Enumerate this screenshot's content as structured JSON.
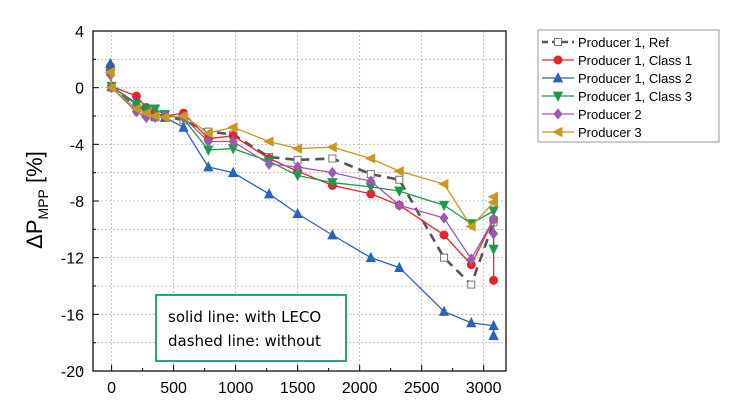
{
  "chart_data": {
    "type": "line",
    "ylabel": {
      "main": "ΔP",
      "sub": "MPP",
      "unit": " [%]"
    },
    "xlabel": "",
    "title": "",
    "xlim": [
      -150,
      3180
    ],
    "ylim": [
      -20,
      4
    ],
    "xticks": [
      0,
      500,
      1000,
      1500,
      2000,
      2500,
      3000
    ],
    "yticks": [
      4,
      0,
      -4,
      -8,
      -12,
      -16,
      -20
    ],
    "xtick_labels": [
      "0",
      "500",
      "1000",
      "1500",
      "2000",
      "2500",
      "3000"
    ],
    "ytick_labels": [
      "4",
      "0",
      "-4",
      "-8",
      "-12",
      "-16",
      "-20"
    ],
    "grid": true,
    "legend_position": "top-right",
    "series": [
      {
        "name": "Producer 1, Ref",
        "color": "#555555",
        "marker": "square-open",
        "dashed": true,
        "x": [
          -10,
          0,
          200,
          280,
          350,
          430,
          580,
          780,
          980,
          1270,
          1500,
          1780,
          2090,
          2320,
          2680,
          2900,
          3080
        ],
        "y": [
          1.2,
          0.0,
          -1.3,
          -1.8,
          -2.1,
          -2.0,
          -2.3,
          -3.1,
          -3.3,
          -4.9,
          -5.1,
          -5.0,
          -6.1,
          -6.5,
          -12.0,
          -13.9,
          -9.5
        ]
      },
      {
        "name": "Producer 1, Class 1",
        "color": "#e8242a",
        "marker": "circle",
        "x": [
          -10,
          0,
          200,
          280,
          350,
          430,
          580,
          780,
          980,
          1270,
          1500,
          1780,
          2090,
          2320,
          2680,
          2900,
          3080,
          3080
        ],
        "y": [
          1.5,
          0.1,
          -0.6,
          -1.4,
          -1.8,
          -2.0,
          -1.8,
          -3.6,
          -3.4,
          -5.0,
          -5.9,
          -6.9,
          -7.5,
          -8.3,
          -10.4,
          -12.5,
          -9.3,
          -13.6
        ]
      },
      {
        "name": "Producer 1, Class 2",
        "color": "#2b63b8",
        "marker": "triangle-up",
        "x": [
          -10,
          0,
          200,
          280,
          350,
          430,
          580,
          780,
          980,
          1270,
          1500,
          1780,
          2090,
          2320,
          2680,
          2900,
          3080,
          3080
        ],
        "y": [
          1.7,
          0.1,
          -1.1,
          -1.8,
          -2.0,
          -2.1,
          -2.8,
          -5.6,
          -6.0,
          -7.5,
          -8.9,
          -10.4,
          -12.0,
          -12.7,
          -15.8,
          -16.6,
          -16.8,
          -17.5
        ]
      },
      {
        "name": "Producer 1, Class 3",
        "color": "#1f9a4c",
        "marker": "triangle-down",
        "x": [
          -10,
          0,
          200,
          280,
          350,
          430,
          580,
          780,
          980,
          1270,
          1500,
          1780,
          2090,
          2320,
          2680,
          2900,
          3080,
          3080
        ],
        "y": [
          1.0,
          0.1,
          -1.2,
          -1.5,
          -1.5,
          -1.9,
          -2.2,
          -4.4,
          -4.3,
          -5.2,
          -6.2,
          -6.7,
          -7.0,
          -7.3,
          -8.3,
          -9.6,
          -8.7,
          -11.4
        ]
      },
      {
        "name": "Producer 2",
        "color": "#9b59b6",
        "marker": "diamond",
        "x": [
          -10,
          0,
          200,
          280,
          350,
          430,
          580,
          780,
          980,
          1270,
          1500,
          1780,
          2090,
          2320,
          2680,
          2900,
          3080,
          3080
        ],
        "y": [
          0.9,
          0.0,
          -1.7,
          -2.1,
          -2.1,
          -2.0,
          -2.1,
          -3.8,
          -3.8,
          -5.4,
          -5.6,
          -6.0,
          -6.6,
          -8.3,
          -9.2,
          -12.1,
          -9.3,
          -10.3
        ]
      },
      {
        "name": "Producer 3",
        "color": "#c9991f",
        "marker": "triangle-left",
        "x": [
          -10,
          0,
          200,
          280,
          350,
          430,
          580,
          780,
          980,
          1270,
          1500,
          1780,
          2090,
          2320,
          2680,
          2900,
          3080,
          3080
        ],
        "y": [
          1.1,
          0.0,
          -1.5,
          -1.8,
          -2.0,
          -2.1,
          -2.0,
          -3.2,
          -2.8,
          -3.8,
          -4.3,
          -4.2,
          -5.0,
          -5.9,
          -6.8,
          -9.8,
          -8.1,
          -7.7
        ]
      }
    ],
    "annotation_lines": [
      "solid line: with LECO",
      "dashed line: without"
    ]
  }
}
